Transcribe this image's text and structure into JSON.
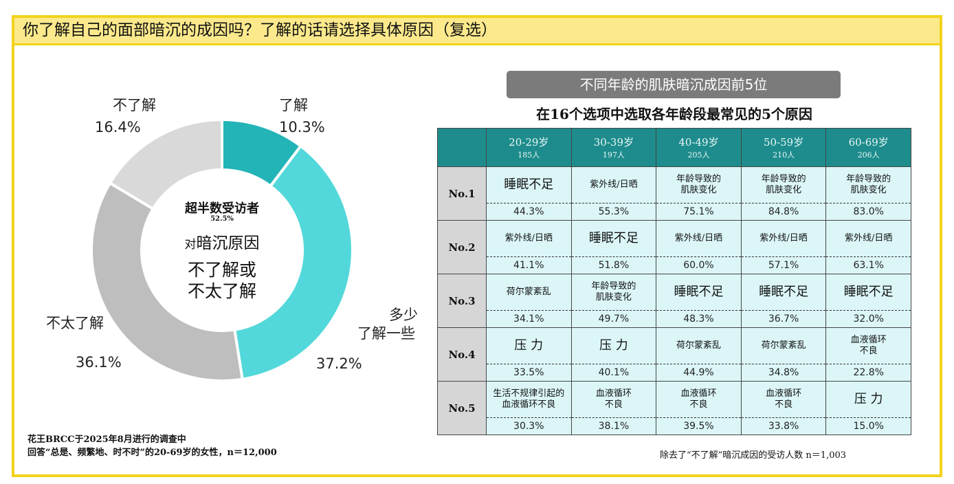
{
  "title": "你了解自己的面部暗沉的成因吗？了解的话请选择具体原因（复选）",
  "chart_data": {
    "type": "pie",
    "variant": "donut",
    "slices": [
      {
        "label": "了解",
        "value": 10.3,
        "display": "10.3%",
        "color": "#22b4b7"
      },
      {
        "label": "多少了解一些",
        "value": 37.2,
        "display": "37.2%",
        "color": "#52d8da"
      },
      {
        "label": "不太了解",
        "value": 36.1,
        "display": "36.1%",
        "color": "#bebebe"
      },
      {
        "label": "不了解",
        "value": 16.4,
        "display": "16.4%",
        "color": "#d9d9d9"
      }
    ],
    "center_text": {
      "line1": "超半数受访者",
      "pct": "52.5%",
      "line2_prefix": "对",
      "line2": "暗沉原因",
      "line3": "不了解或",
      "line4": "不太了解"
    }
  },
  "labels": {
    "s0a": "了解",
    "s1a": "多少",
    "s1b": "了解一些",
    "s2a": "不太了解",
    "s3a": "不了解"
  },
  "footnote": {
    "line1": "花王BRCC于2025年8月进行的调查中",
    "line2": "回答“总是、频繁地、时不时”的20-69岁的女性，n＝12,000"
  },
  "ranking": {
    "banner": "不同年龄的肌肤暗沉成因前5位",
    "subtitle": "在16个选项中选取各年龄段最常见的5个原因",
    "columns": [
      {
        "age": "20-29岁",
        "n": "185人"
      },
      {
        "age": "30-39岁",
        "n": "197人"
      },
      {
        "age": "40-49岁",
        "n": "205人"
      },
      {
        "age": "50-59岁",
        "n": "210人"
      },
      {
        "age": "60-69岁",
        "n": "206人"
      }
    ],
    "rows": [
      {
        "rank": "No.1",
        "cells": [
          {
            "reason": "睡眠不足",
            "pct": "44.3%",
            "big": true
          },
          {
            "reason": "紫外线/日晒",
            "pct": "55.3%"
          },
          {
            "reason": "年龄导致的\n肌肤变化",
            "pct": "75.1%"
          },
          {
            "reason": "年龄导致的\n肌肤变化",
            "pct": "84.8%"
          },
          {
            "reason": "年龄导致的\n肌肤变化",
            "pct": "83.0%"
          }
        ]
      },
      {
        "rank": "No.2",
        "cells": [
          {
            "reason": "紫外线/日晒",
            "pct": "41.1%"
          },
          {
            "reason": "睡眠不足",
            "pct": "51.8%",
            "big": true
          },
          {
            "reason": "紫外线/日晒",
            "pct": "60.0%"
          },
          {
            "reason": "紫外线/日晒",
            "pct": "57.1%"
          },
          {
            "reason": "紫外线/日晒",
            "pct": "63.1%"
          }
        ]
      },
      {
        "rank": "No.3",
        "cells": [
          {
            "reason": "荷尔蒙紊乱",
            "pct": "34.1%"
          },
          {
            "reason": "年龄导致的\n肌肤变化",
            "pct": "49.7%"
          },
          {
            "reason": "睡眠不足",
            "pct": "48.3%",
            "big": true
          },
          {
            "reason": "睡眠不足",
            "pct": "36.7%",
            "big": true
          },
          {
            "reason": "睡眠不足",
            "pct": "32.0%",
            "big": true
          }
        ]
      },
      {
        "rank": "No.4",
        "cells": [
          {
            "reason": "压 力",
            "pct": "33.5%",
            "big": true
          },
          {
            "reason": "压 力",
            "pct": "40.1%",
            "big": true
          },
          {
            "reason": "荷尔蒙紊乱",
            "pct": "44.9%"
          },
          {
            "reason": "荷尔蒙紊乱",
            "pct": "34.8%"
          },
          {
            "reason": "血液循环\n不良",
            "pct": "22.8%"
          }
        ]
      },
      {
        "rank": "No.5",
        "cells": [
          {
            "reason": "生活不规律引起的\n血液循环不良",
            "pct": "30.3%"
          },
          {
            "reason": "血液循环\n不良",
            "pct": "38.1%"
          },
          {
            "reason": "血液循环\n不良",
            "pct": "39.5%"
          },
          {
            "reason": "血液循环\n不良",
            "pct": "33.8%"
          },
          {
            "reason": "压 力",
            "pct": "15.0%",
            "big": true
          }
        ]
      }
    ],
    "note": "除去了“不了解”暗沉成因的受访人数  n＝1,003"
  }
}
